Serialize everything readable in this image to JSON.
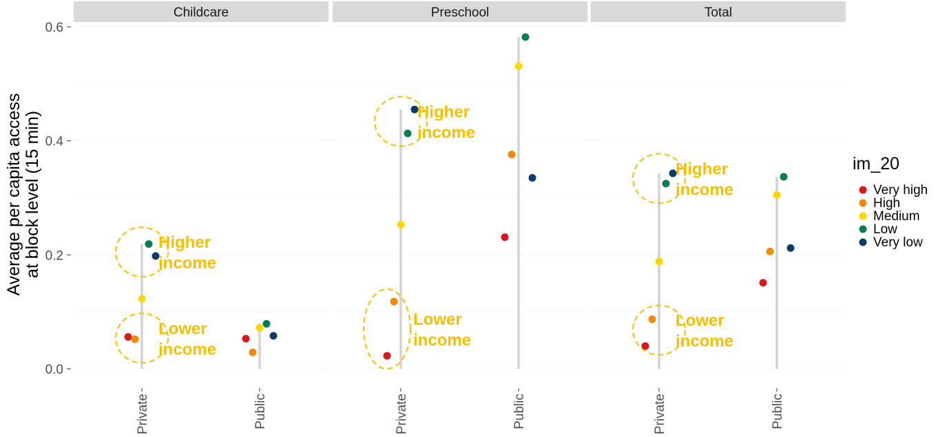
{
  "chart_data": {
    "type": "scatter",
    "ylabel": "Average per capita access\nat block level (15 min)",
    "ylim": [
      0,
      0.6
    ],
    "yticks": [
      "0.0",
      "0.2",
      "0.4",
      "0.6"
    ],
    "categories": [
      "Private",
      "Public"
    ],
    "grid": true,
    "legend": {
      "title": "im_20",
      "placement": "right",
      "entries": [
        {
          "name": "Very high",
          "color": "#d7191c"
        },
        {
          "name": "High",
          "color": "#f08a0c"
        },
        {
          "name": "Medium",
          "color": "#ffd700"
        },
        {
          "name": "Low",
          "color": "#0a7d4f"
        },
        {
          "name": "Very low",
          "color": "#0b3b66"
        }
      ]
    },
    "series_order": [
      "Very high",
      "High",
      "Medium",
      "Low",
      "Very low"
    ],
    "facets": [
      {
        "name": "Childcare",
        "groups": [
          {
            "category": "Private",
            "values": [
              0.056,
              0.052,
              0.123,
              0.219,
              0.198
            ]
          },
          {
            "category": "Public",
            "values": [
              0.053,
              0.029,
              0.072,
              0.079,
              0.058
            ]
          }
        ],
        "annotations": [
          {
            "text": [
              "Higher",
              "income"
            ],
            "category": "Private",
            "y": 0.205
          },
          {
            "text": [
              "Lower",
              "income"
            ],
            "category": "Private",
            "y": 0.054
          }
        ]
      },
      {
        "name": "Preschool",
        "groups": [
          {
            "category": "Private",
            "values": [
              0.023,
              0.118,
              0.253,
              0.413,
              0.455
            ]
          },
          {
            "category": "Public",
            "values": [
              0.231,
              0.376,
              0.531,
              0.582,
              0.335
            ]
          }
        ],
        "annotations": [
          {
            "text": [
              "Higher",
              "income"
            ],
            "category": "Private",
            "y": 0.434
          },
          {
            "text": [
              "Lower",
              "income"
            ],
            "category": "Private",
            "y": 0.07
          }
        ]
      },
      {
        "name": "Total",
        "groups": [
          {
            "category": "Private",
            "values": [
              0.04,
              0.087,
              0.188,
              0.325,
              0.343
            ]
          },
          {
            "category": "Public",
            "values": [
              0.151,
              0.206,
              0.305,
              0.337,
              0.212
            ]
          }
        ],
        "annotations": [
          {
            "text": [
              "Higher",
              "income"
            ],
            "category": "Private",
            "y": 0.334
          },
          {
            "text": [
              "Lower",
              "income"
            ],
            "category": "Private",
            "y": 0.068
          }
        ]
      }
    ],
    "annotation_color": "#f5c000"
  }
}
